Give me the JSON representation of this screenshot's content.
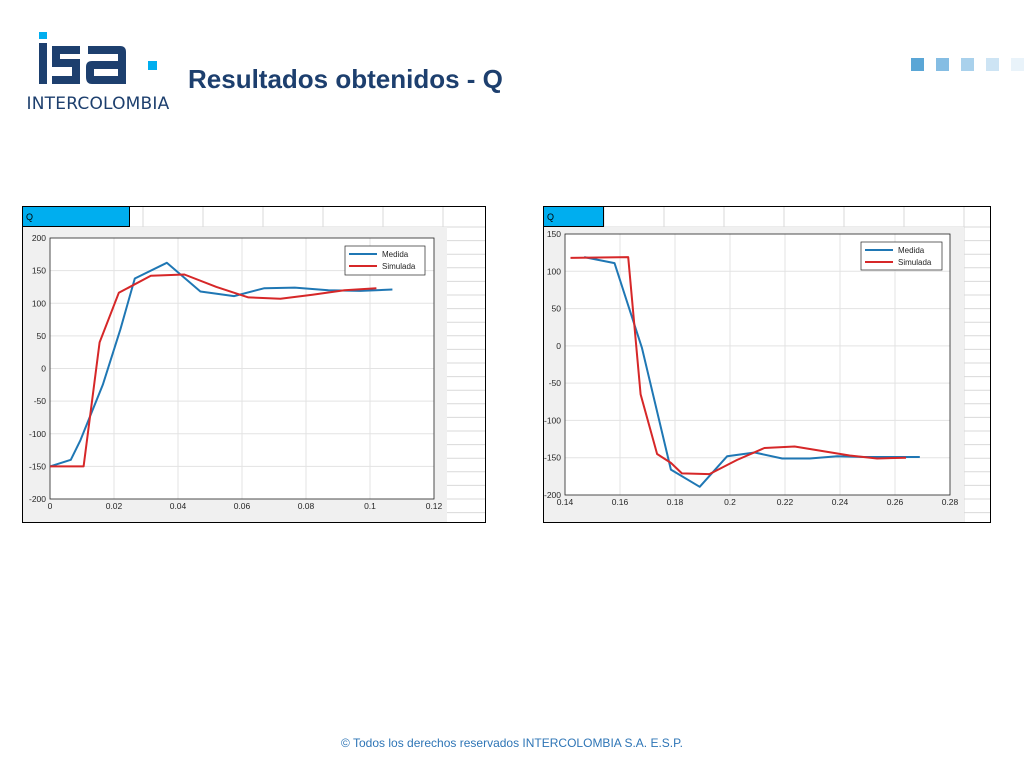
{
  "header": {
    "logo_text": "INTERCOLOMBIA",
    "logo_mark_icon": "isa-logo",
    "title": "Resultados obtenidos - Q",
    "decor_squares_colors": [
      "#5aa6d6",
      "#85bde3",
      "#a9d1ec",
      "#cde4f4",
      "#e9f3fa"
    ]
  },
  "footer": {
    "text": "© Todos los derechos reservados INTERCOLOMBIA S.A. E.S.P."
  },
  "colors": {
    "medida": "#1f77b4",
    "simulada": "#d62728",
    "tab": "#00aeef",
    "brand": "#1d3f6e"
  },
  "chart_data": [
    {
      "type": "line",
      "tab_label": "Q",
      "xlim": [
        0,
        0.12
      ],
      "ylim": [
        -200,
        200
      ],
      "x_ticks": [
        0,
        0.02,
        0.04,
        0.06,
        0.08,
        0.1,
        0.12
      ],
      "x_tick_labels": [
        "0",
        "0.02",
        "0.04",
        "0.06",
        "0.08",
        "0.1",
        "0.12"
      ],
      "y_ticks": [
        200,
        150,
        100,
        50,
        0,
        -50,
        -100,
        -150,
        -200
      ],
      "y_tick_labels": [
        "200",
        "150",
        "100",
        "50",
        "0",
        "-50",
        "-100",
        "-150",
        "-200"
      ],
      "grid": true,
      "legend_position": "top-right",
      "series": [
        {
          "name": "Medida",
          "color": "#1f77b4",
          "points": [
            [
              0,
              -150
            ],
            [
              0.0065,
              -140
            ],
            [
              0.0095,
              -110
            ],
            [
              0.0165,
              -25
            ],
            [
              0.022,
              60
            ],
            [
              0.0265,
              138
            ],
            [
              0.0365,
              162
            ],
            [
              0.047,
              118
            ],
            [
              0.0575,
              111
            ],
            [
              0.067,
              123
            ],
            [
              0.0765,
              124
            ],
            [
              0.087,
              120
            ],
            [
              0.097,
              119
            ],
            [
              0.107,
              121
            ]
          ]
        },
        {
          "name": "Simulada",
          "color": "#d62728",
          "points": [
            [
              0,
              -150
            ],
            [
              0.0105,
              -150
            ],
            [
              0.0155,
              40
            ],
            [
              0.0215,
              116
            ],
            [
              0.0315,
              142
            ],
            [
              0.042,
              144
            ],
            [
              0.052,
              125
            ],
            [
              0.062,
              109
            ],
            [
              0.072,
              107
            ],
            [
              0.082,
              113
            ],
            [
              0.092,
              120
            ],
            [
              0.102,
              123
            ]
          ]
        }
      ]
    },
    {
      "type": "line",
      "tab_label": "Q",
      "xlim": [
        0.14,
        0.28
      ],
      "ylim": [
        -200,
        150
      ],
      "x_ticks": [
        0.14,
        0.16,
        0.18,
        0.2,
        0.22,
        0.24,
        0.26,
        0.28
      ],
      "x_tick_labels": [
        "0.14",
        "0.16",
        "0.18",
        "0.2",
        "0.22",
        "0.24",
        "0.26",
        "0.28"
      ],
      "y_ticks": [
        150,
        100,
        50,
        0,
        -50,
        -100,
        -150,
        -200
      ],
      "y_tick_labels": [
        "150",
        "100",
        "50",
        "0",
        "-50",
        "-100",
        "-150",
        "-200"
      ],
      "grid": true,
      "legend_position": "top-right",
      "series": [
        {
          "name": "Medida",
          "color": "#1f77b4",
          "points": [
            [
              0.147,
              119
            ],
            [
              0.158,
              111
            ],
            [
              0.168,
              -3
            ],
            [
              0.1785,
              -166
            ],
            [
              0.189,
              -189
            ],
            [
              0.199,
              -148
            ],
            [
              0.209,
              -143
            ],
            [
              0.219,
              -151
            ],
            [
              0.229,
              -151
            ],
            [
              0.239,
              -148
            ],
            [
              0.249,
              -149
            ],
            [
              0.259,
              -149
            ],
            [
              0.269,
              -149
            ]
          ]
        },
        {
          "name": "Simulada",
          "color": "#d62728",
          "points": [
            [
              0.142,
              118
            ],
            [
              0.163,
              119
            ],
            [
              0.1675,
              -65
            ],
            [
              0.1735,
              -145
            ],
            [
              0.1785,
              -157
            ],
            [
              0.1825,
              -171
            ],
            [
              0.1925,
              -172
            ],
            [
              0.2025,
              -153
            ],
            [
              0.2125,
              -137
            ],
            [
              0.2235,
              -135
            ],
            [
              0.2335,
              -141
            ],
            [
              0.2435,
              -147
            ],
            [
              0.2535,
              -151
            ],
            [
              0.264,
              -150
            ]
          ]
        }
      ]
    }
  ]
}
